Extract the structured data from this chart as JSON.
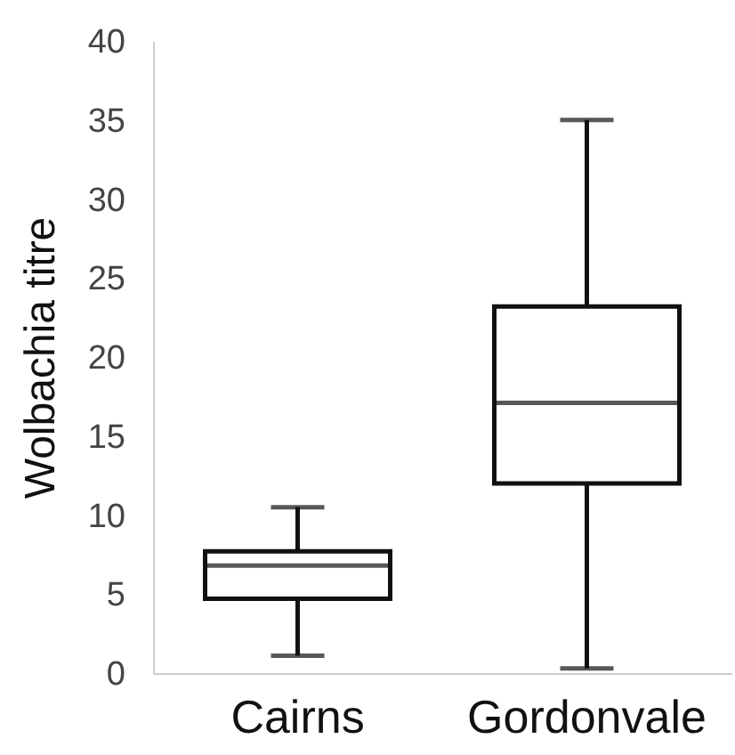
{
  "chart_data": {
    "type": "box",
    "ylabel": "Wolbachia titre",
    "categories": [
      "Cairns",
      "Gordonvale"
    ],
    "boxes": [
      {
        "low": 1.1,
        "q1": 4.7,
        "median": 6.8,
        "q3": 7.7,
        "high": 10.5
      },
      {
        "low": 0.3,
        "q1": 12.0,
        "median": 17.1,
        "q3": 23.2,
        "high": 35.0
      }
    ],
    "ylim": [
      0,
      40
    ],
    "yticks": [
      0,
      5,
      10,
      15,
      20,
      25,
      30,
      35,
      40
    ],
    "grid": false
  }
}
